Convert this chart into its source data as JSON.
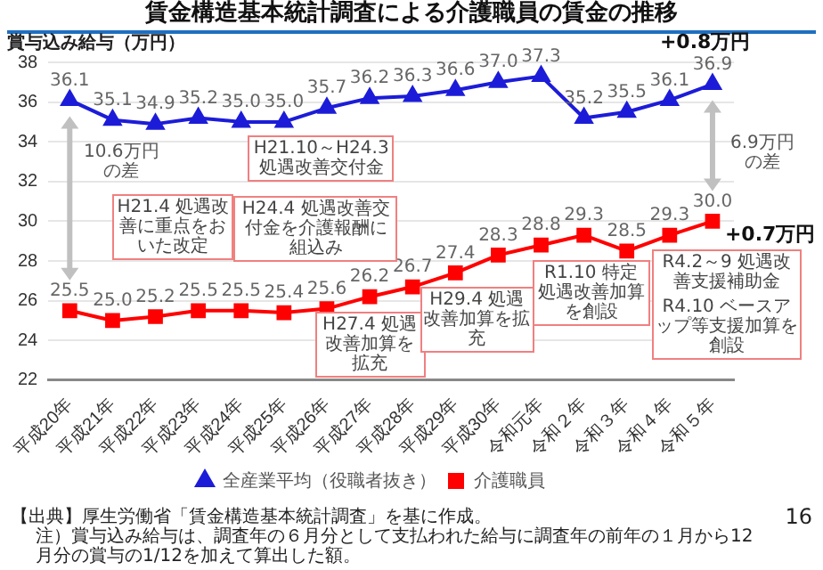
{
  "chart_data": {
    "type": "line",
    "title": "賃金構造基本統計調査による介護職員の賃金の推移",
    "ylabel": "賞与込み給与（万円）",
    "categories": [
      "平成20年",
      "平成21年",
      "平成22年",
      "平成23年",
      "平成24年",
      "平成25年",
      "平成26年",
      "平成27年",
      "平成28年",
      "平成29年",
      "平成30年",
      "令和元年",
      "令和２年",
      "令和３年",
      "令和４年",
      "令和５年"
    ],
    "series": [
      {
        "name": "全産業平均（役職者抜き）",
        "color": "#1c1cd8",
        "marker": "triangle",
        "values": [
          36.1,
          35.1,
          34.9,
          35.2,
          35.0,
          35.0,
          35.7,
          36.2,
          36.3,
          36.6,
          37.0,
          37.3,
          35.2,
          35.5,
          36.1,
          36.9
        ],
        "value_labels": [
          "36.1",
          "35.1",
          "34.9",
          "35.2",
          "35.0",
          "35.0",
          "35.7",
          "36.2",
          "36.3",
          "36.6",
          "37.0",
          "37.3",
          "35.2",
          "35.5",
          "36.1",
          "36.9"
        ]
      },
      {
        "name": "介護職員",
        "color": "#ff0000",
        "marker": "square",
        "values": [
          25.5,
          25.0,
          25.2,
          25.5,
          25.5,
          25.4,
          25.6,
          26.2,
          26.7,
          27.4,
          28.3,
          28.8,
          29.3,
          28.5,
          29.3,
          30.0
        ],
        "value_labels": [
          "25.5",
          "25.0",
          "25.2",
          "25.5",
          "25.5",
          "25.4",
          "25.6",
          "26.2",
          "26.7",
          "27.4",
          "28.3",
          "28.8",
          "29.3",
          "28.5",
          "29.3",
          "30.0"
        ]
      }
    ],
    "ylim": [
      22,
      38
    ],
    "yticks": [
      22,
      24,
      26,
      28,
      30,
      32,
      34,
      36,
      38
    ],
    "grid": "y",
    "legend": "bottom",
    "annotations": [
      {
        "text": "+0.8万円",
        "x": "令和５年",
        "y": 36.9
      },
      {
        "text": "+0.7万円",
        "x": "令和５年",
        "y": 30.0
      },
      "10.6万円の差",
      "6.9万円の差",
      "H21.4 処遇改善に重点をおいた改定",
      "H21.10～H24.3 処遇改善交付金",
      "H24.4 処遇改善交付金を介護報酬に組込み",
      "H27.4 処遇改善加算を拡充",
      "H29.4 処遇改善加算を拡充",
      "R1.10 特定処遇改善加算を創設",
      "R4.2～9 処遇改善支援補助金",
      "R4.10 ベースアップ等支援加算を創設",
      "【出典】厚生労働省「賃金構造基本統計調査」を基に作成。",
      "注）賞与込み給与は、調査年の６月分として支払われた給与に調査年の前年の１月から12月分の賞与の1/12を加えて算出した額。",
      "16"
    ]
  }
}
